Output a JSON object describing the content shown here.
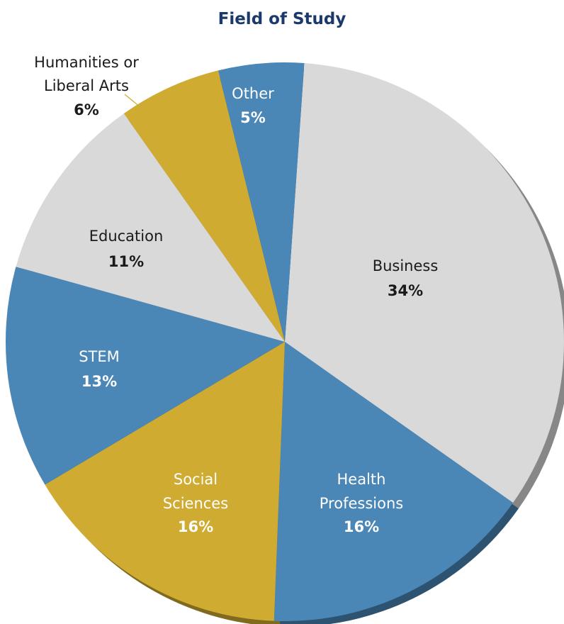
{
  "chart_data": {
    "type": "pie",
    "title": "Field of Study",
    "slices": [
      {
        "label": "Business",
        "value": 34,
        "display": "34%",
        "color": "#d9d9d9",
        "label_color": "#1a1a1a"
      },
      {
        "label": "Health Professions",
        "value": 16,
        "display": "16%",
        "color": "#4a86b6",
        "label_color": "#ffffff"
      },
      {
        "label": "Social Sciences",
        "value": 16,
        "display": "16%",
        "color": "#cfab31",
        "label_color": "#ffffff"
      },
      {
        "label": "STEM",
        "value": 13,
        "display": "13%",
        "color": "#4a86b6",
        "label_color": "#ffffff"
      },
      {
        "label": "Education",
        "value": 11,
        "display": "11%",
        "color": "#d9d9d9",
        "label_color": "#1a1a1a"
      },
      {
        "label": "Humanities or Liberal Arts",
        "value": 6,
        "display": "6%",
        "color": "#cfab31",
        "label_color": "#1a1a1a"
      },
      {
        "label": "Other",
        "value": 5,
        "display": "5%",
        "color": "#4a86b6",
        "label_color": "#ffffff"
      }
    ]
  }
}
